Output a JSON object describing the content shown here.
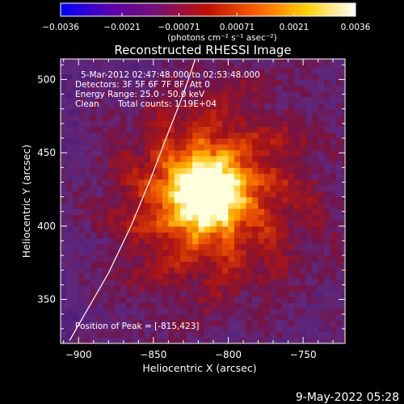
{
  "chart_data": {
    "type": "heatmap",
    "title": "Reconstructed RHESSI Image",
    "xlabel": "Heliocentric X (arcsec)",
    "ylabel": "Heliocentric Y (arcsec)",
    "xlim": [
      -912,
      -722
    ],
    "ylim": [
      320,
      514
    ],
    "x_ticks": [
      -900,
      -850,
      -800,
      -750
    ],
    "y_ticks": [
      350,
      400,
      450,
      500
    ],
    "x_tick_labels": [
      "−900",
      "−850",
      "−800",
      "−750"
    ],
    "y_tick_labels": [
      "350",
      "400",
      "450",
      "500"
    ],
    "colorbar": {
      "min": -0.0036,
      "max": 0.0036,
      "ticks": [
        -0.0036,
        -0.0021,
        -0.00071,
        0.00071,
        0.0021,
        0.0036
      ],
      "tick_labels": [
        "−0.0036",
        "−0.0021",
        "−0.00071",
        "0.00071",
        "0.0021",
        "0.0036"
      ],
      "units_label": "(photons cm⁻² s⁻¹ asec⁻²)",
      "colors": [
        "#0000ff",
        "#5a00b0",
        "#7a1070",
        "#c01000",
        "#ff6000",
        "#ffd000",
        "#ffffff"
      ]
    },
    "pixel_size_arcsec": 4,
    "peak": [
      -815,
      423
    ],
    "limb_curve": [
      [
        -906,
        322
      ],
      [
        -880,
        368
      ],
      [
        -865,
        400
      ],
      [
        -852,
        432
      ],
      [
        -840,
        464
      ],
      [
        -830,
        490
      ],
      [
        -822,
        514
      ]
    ],
    "annotations": {
      "time_range": "5-Mar-2012 02:47:48.000 to 02:53:48.000",
      "detectors": "Detectors: 3F 5F 6F 7F 8F, Att 0",
      "energy_range": "Energy Range: 25.0 - 50.0 keV",
      "clean_label": "Clean",
      "total_counts": "Total counts: 1.19E+04",
      "peak_position": "Position of Peak = [-815,423]"
    },
    "grid": false
  },
  "footer": {
    "timestamp": "9-May-2022 05:28"
  }
}
